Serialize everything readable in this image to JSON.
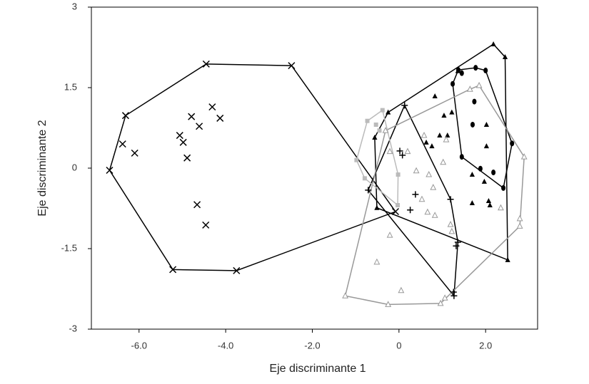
{
  "chart_data": {
    "type": "scatter",
    "hulls": true,
    "xlabel": "Eje discriminante 1",
    "ylabel": "Eje discriminante 2",
    "xlim": [
      -7.1,
      3.2
    ],
    "ylim": [
      -3,
      3
    ],
    "xticks": [
      {
        "value": -6,
        "label": "-6.0"
      },
      {
        "value": -4,
        "label": "-4.0"
      },
      {
        "value": -2,
        "label": "-2.0"
      },
      0,
      {
        "value": 2,
        "label": "2.0"
      }
    ],
    "yticks": [
      3,
      1.5,
      0,
      -1.5,
      -3
    ],
    "series": [
      {
        "marker": "x",
        "color": "#000000",
        "x": [
          -6.68,
          -6.31,
          -6.38,
          -6.1,
          -4.45,
          -2.48,
          -5.22,
          -3.75,
          -4.79,
          -4.61,
          -5.06,
          -4.98,
          -4.89,
          -4.31,
          -4.13,
          -4.66,
          -4.46,
          -0.08
        ],
        "y": [
          -0.04,
          0.98,
          0.45,
          0.28,
          1.94,
          1.91,
          -1.89,
          -1.91,
          0.96,
          0.78,
          0.61,
          0.48,
          0.19,
          1.14,
          0.93,
          -0.68,
          -1.06,
          -0.81
        ]
      },
      {
        "marker": "plus",
        "color": "#000000",
        "x": [
          -0.71,
          0.02,
          0.08,
          0.38,
          0.26,
          1.19,
          1.32,
          1.36,
          1.26,
          1.27,
          0.13
        ],
        "y": [
          -0.41,
          0.32,
          0.24,
          -0.49,
          -0.78,
          -0.58,
          -1.45,
          -1.38,
          -2.31,
          -2.38,
          1.17
        ]
      },
      {
        "marker": "triangle",
        "color": "#000000",
        "x": [
          2.18,
          2.45,
          2.51,
          -0.51,
          -0.56,
          -0.25,
          0.83,
          1.04,
          1.22,
          1.12,
          0.94,
          0.63,
          0.76,
          1.36,
          2.02,
          2.02,
          1.97,
          2.07,
          2.1,
          1.69,
          1.69
        ],
        "y": [
          2.31,
          2.07,
          -1.71,
          -0.74,
          0.57,
          1.04,
          1.34,
          0.98,
          1.04,
          0.61,
          0.61,
          0.48,
          0.41,
          1.81,
          0.81,
          0.41,
          -0.25,
          -0.61,
          -0.69,
          -0.12,
          -0.65
        ]
      },
      {
        "marker": "circle",
        "color": "#000000",
        "x": [
          1.37,
          1.45,
          1.77,
          2.0,
          1.24,
          1.74,
          1.7,
          1.45,
          1.88,
          2.18,
          2.41,
          2.61
        ],
        "y": [
          1.83,
          1.77,
          1.87,
          1.82,
          1.57,
          1.24,
          0.81,
          0.21,
          -0.01,
          -0.08,
          -0.37,
          0.46
        ]
      },
      {
        "marker": "open-triangle",
        "color": "#999999",
        "x": [
          -1.24,
          -0.25,
          0.96,
          1.06,
          2.79,
          2.79,
          2.89,
          1.85,
          1.64,
          -0.31,
          -0.21,
          -0.51,
          0.05,
          0.58,
          0.2,
          1.02,
          0.69,
          0.79,
          0.53,
          0.66,
          0.83,
          1.19,
          1.22,
          2.35,
          -0.21,
          1.09,
          0.4
        ],
        "y": [
          -2.38,
          -2.54,
          -2.52,
          -2.42,
          -0.94,
          -1.08,
          0.21,
          1.54,
          1.47,
          0.7,
          -1.25,
          -1.75,
          -2.28,
          0.61,
          0.31,
          0.11,
          -0.12,
          -0.36,
          -0.58,
          -0.82,
          -0.88,
          -1.05,
          -1.18,
          -0.74,
          0.31,
          0.53,
          -0.05
        ]
      },
      {
        "marker": "square",
        "color": "#bbbbbb",
        "x": [
          -0.73,
          -0.53,
          -0.98,
          -0.79,
          -0.02,
          -0.03,
          -0.38,
          -0.45
        ],
        "y": [
          0.88,
          0.81,
          0.15,
          -0.19,
          -0.12,
          -0.69,
          1.08,
          0.7
        ]
      }
    ]
  }
}
